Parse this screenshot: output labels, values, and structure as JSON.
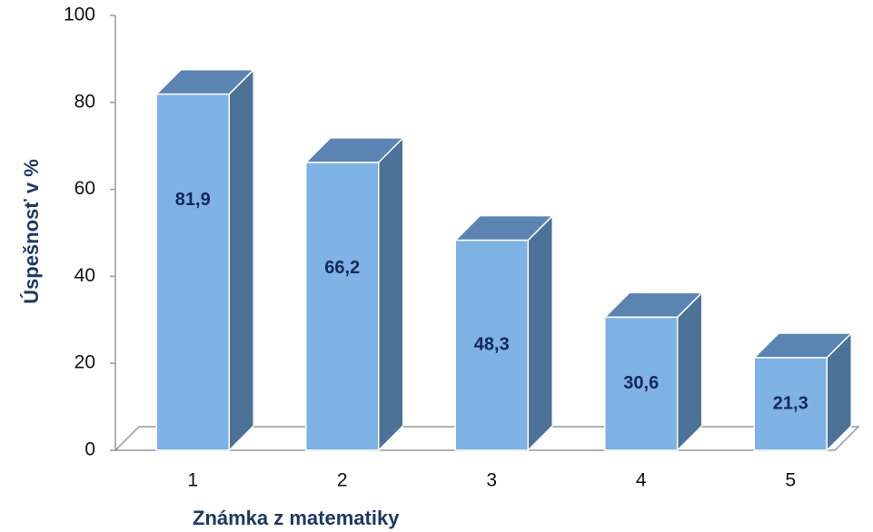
{
  "chart_data": {
    "type": "bar3d",
    "x_label": "Známka z matematiky",
    "y_label": "Úspešnosť  v  %",
    "categories": [
      "1",
      "2",
      "3",
      "4",
      "5"
    ],
    "values": [
      81.9,
      66.2,
      48.3,
      30.6,
      21.3
    ],
    "value_labels": [
      "81,9",
      "66,2",
      "48,3",
      "30,6",
      "21,3"
    ],
    "color": "#7fb2e5",
    "ylim": [
      0,
      100
    ],
    "yticks": [
      0,
      20,
      40,
      60,
      80,
      100
    ],
    "grid": false
  }
}
